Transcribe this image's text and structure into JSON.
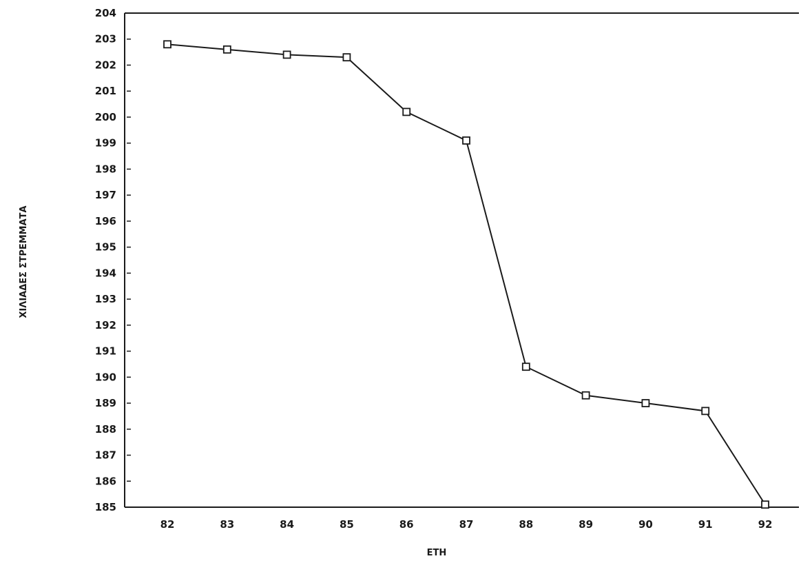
{
  "chart_data": {
    "type": "line",
    "title": "",
    "xlabel": "ΕΤΗ",
    "ylabel": "ΧΙΛΙΑΔΕΣ ΣΤΡΕΜΜΑΤΑ",
    "x": [
      "82",
      "83",
      "84",
      "85",
      "86",
      "87",
      "88",
      "89",
      "90",
      "91",
      "92"
    ],
    "series": [
      {
        "values": [
          202.8,
          202.6,
          202.4,
          202.3,
          200.2,
          199.1,
          190.4,
          189.3,
          189.0,
          188.7,
          185.1
        ]
      }
    ],
    "ylim": [
      185,
      204
    ],
    "yticks": [
      "185",
      "186",
      "187",
      "188",
      "189",
      "190",
      "191",
      "192",
      "193",
      "194",
      "195",
      "196",
      "197",
      "198",
      "199",
      "200",
      "201",
      "202",
      "203",
      "204"
    ],
    "grid": false,
    "marker": "square",
    "colors": {
      "line": "#1a1a1a",
      "axis": "#1a1a1a"
    }
  }
}
